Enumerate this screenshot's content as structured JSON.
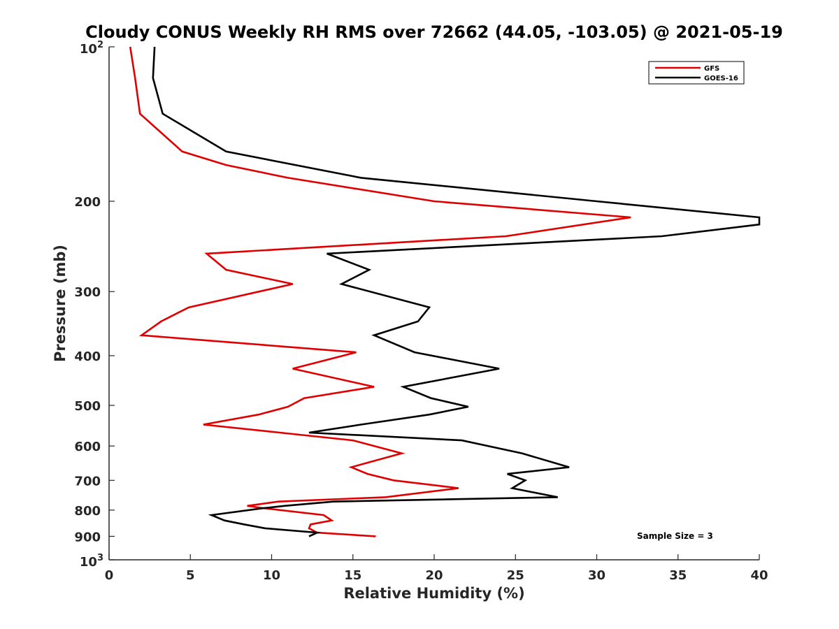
{
  "chart_data": {
    "type": "line",
    "title": "Cloudy CONUS Weekly RH RMS over 72662 (44.05, -103.05) @ 2021-05-19",
    "xlabel": "Relative Humidity (%)",
    "ylabel": "Pressure (mb)",
    "xlim": [
      0,
      40
    ],
    "ylim": [
      100,
      1000
    ],
    "y_scale": "log",
    "y_reversed": true,
    "grid": false,
    "legend_position": "top-right",
    "x_ticks": [
      "0",
      "5",
      "10",
      "15",
      "20",
      "25",
      "30",
      "35",
      "40"
    ],
    "y_ticks": [
      {
        "value": 200,
        "label": "200"
      },
      {
        "value": 300,
        "label": "300"
      },
      {
        "value": 400,
        "label": "400"
      },
      {
        "value": 500,
        "label": "500"
      },
      {
        "value": 600,
        "label": "600"
      },
      {
        "value": 700,
        "label": "700"
      },
      {
        "value": 800,
        "label": "800"
      },
      {
        "value": 900,
        "label": "900"
      }
    ],
    "y_decade_ticks": [
      {
        "value": 100,
        "base": "10",
        "exp": "2"
      },
      {
        "value": 1000,
        "base": "10",
        "exp": "3"
      }
    ],
    "series": [
      {
        "name": "GFS",
        "color": "#e00000",
        "points": [
          [
            1.3,
            100
          ],
          [
            1.6,
            115
          ],
          [
            1.9,
            135
          ],
          [
            4.5,
            160
          ],
          [
            7.2,
            170
          ],
          [
            11.0,
            180
          ],
          [
            20.0,
            200
          ],
          [
            32.1,
            215
          ],
          [
            24.4,
            234
          ],
          [
            6.0,
            253
          ],
          [
            7.2,
            272
          ],
          [
            11.3,
            290
          ],
          [
            4.9,
            322
          ],
          [
            3.2,
            343
          ],
          [
            2.0,
            365
          ],
          [
            15.2,
            394
          ],
          [
            11.3,
            424
          ],
          [
            16.3,
            460
          ],
          [
            12.0,
            484
          ],
          [
            11.0,
            503
          ],
          [
            9.2,
            521
          ],
          [
            5.8,
            545
          ],
          [
            10.5,
            565
          ],
          [
            15.0,
            585
          ],
          [
            18.0,
            620
          ],
          [
            14.9,
            660
          ],
          [
            15.9,
            680
          ],
          [
            17.5,
            700
          ],
          [
            21.5,
            725
          ],
          [
            17.0,
            755
          ],
          [
            10.4,
            770
          ],
          [
            8.5,
            785
          ],
          [
            9.5,
            793
          ],
          [
            13.2,
            818
          ],
          [
            13.7,
            838
          ],
          [
            12.4,
            853
          ],
          [
            12.3,
            868
          ],
          [
            12.8,
            885
          ],
          [
            16.4,
            900
          ]
        ]
      },
      {
        "name": "GOES-16",
        "color": "#000000",
        "points": [
          [
            2.8,
            100
          ],
          [
            2.7,
            115
          ],
          [
            3.3,
            135
          ],
          [
            7.2,
            160
          ],
          [
            15.5,
            180
          ],
          [
            30.0,
            200
          ],
          [
            40.0,
            215
          ],
          [
            40.0,
            222
          ],
          [
            34.0,
            234
          ],
          [
            13.4,
            253
          ],
          [
            16.0,
            272
          ],
          [
            14.3,
            290
          ],
          [
            19.7,
            322
          ],
          [
            19.0,
            343
          ],
          [
            16.3,
            365
          ],
          [
            18.8,
            394
          ],
          [
            24.0,
            424
          ],
          [
            18.1,
            460
          ],
          [
            19.8,
            484
          ],
          [
            22.1,
            503
          ],
          [
            19.7,
            521
          ],
          [
            15.5,
            545
          ],
          [
            12.3,
            565
          ],
          [
            21.7,
            585
          ],
          [
            25.4,
            620
          ],
          [
            28.3,
            660
          ],
          [
            24.5,
            680
          ],
          [
            25.6,
            700
          ],
          [
            24.8,
            725
          ],
          [
            27.6,
            755
          ],
          [
            13.8,
            770
          ],
          [
            10.8,
            785
          ],
          [
            9.5,
            793
          ],
          [
            6.3,
            818
          ],
          [
            7.1,
            838
          ],
          [
            8.3,
            853
          ],
          [
            9.6,
            868
          ],
          [
            12.8,
            885
          ],
          [
            12.3,
            900
          ]
        ]
      }
    ],
    "annotation": "Sample Size = 3"
  }
}
